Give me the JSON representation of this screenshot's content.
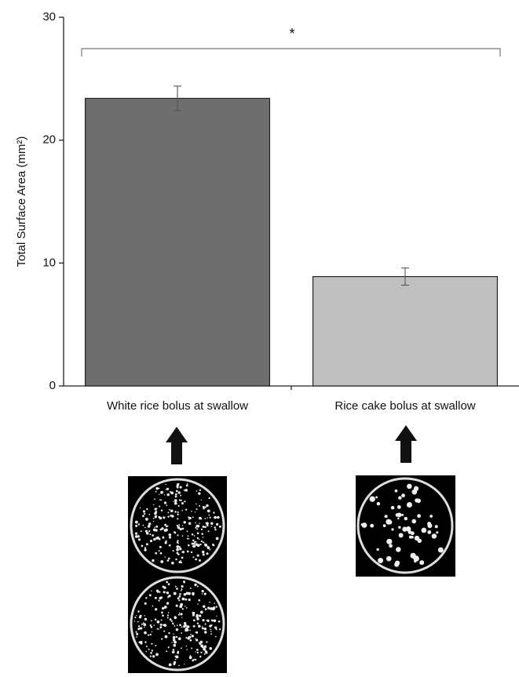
{
  "chart_data": {
    "type": "bar",
    "categories": [
      "White rice bolus at swallow",
      "Rice cake bolus at swallow"
    ],
    "values": [
      23.4,
      8.9
    ],
    "errors": [
      1.0,
      0.7
    ],
    "colors": [
      "#6e6e6e",
      "#c0c0c0"
    ],
    "y_label": "Total Surface Area (mm²)",
    "annotation": "*",
    "ylim": [
      0,
      30
    ],
    "yticks": [
      0,
      10,
      20,
      30
    ],
    "grid": false
  }
}
